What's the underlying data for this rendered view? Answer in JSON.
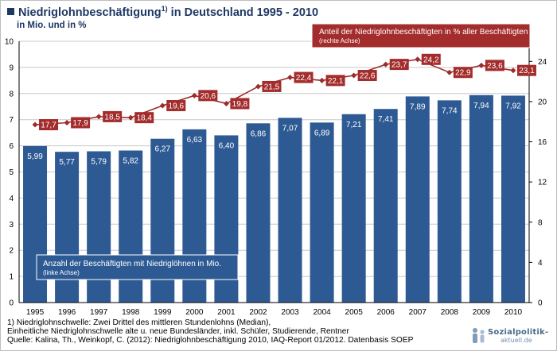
{
  "title": {
    "text": "Niedriglohnbeschäftigung",
    "sup": "1)",
    "rest": " in Deutschland 1995 - 2010"
  },
  "subtitle": "in Mio. und in %",
  "legend_right": {
    "line1": "Anteil der Niedriglohnbeschäftigten in % aller Beschäftigten",
    "line2": "(rechte Achse)"
  },
  "legend_left": {
    "line1": "Anzahl der Beschäftigten mit Niedriglöhnen in Mio.",
    "line2": "(linke Achse)"
  },
  "footnotes": [
    "1) Niedriglohnschwelle: Zwei Drittel des mittleren Stundenlohns (Median),",
    "Einheitliche Niedriglohnschwelle alte u. neue Bundesländer, inkl. Schüler, Studierende, Rentner",
    "Quelle: Kalina, Th., Weinkopf, C. (2012): Niedriglohnbeschäftigung 2010, IAQ-Report 01/2012. Datenbasis SOEP"
  ],
  "logo": {
    "line1": "Sozialpolitik-",
    "line2": "aktuell.de"
  },
  "colors": {
    "bar": "#2e5a94",
    "line": "#9c2b2b",
    "title": "#1f3864"
  },
  "chart_data": {
    "type": "bar",
    "categories": [
      "1995",
      "1996",
      "1997",
      "1998",
      "1999",
      "2000",
      "2001",
      "2002",
      "2003",
      "2004",
      "2005",
      "2006",
      "2007",
      "2008",
      "2009",
      "2010"
    ],
    "series": [
      {
        "type": "bar",
        "axis": "left",
        "values": [
          5.99,
          5.77,
          5.79,
          5.82,
          6.27,
          6.63,
          6.4,
          6.86,
          7.07,
          6.89,
          7.21,
          7.41,
          7.89,
          7.74,
          7.94,
          7.92
        ],
        "labels": [
          "5,99",
          "5,77",
          "5,79",
          "5,82",
          "6,27",
          "6,63",
          "6,40",
          "6,86",
          "7,07",
          "6,89",
          "7,21",
          "7,41",
          "7,89",
          "7,74",
          "7,94",
          "7,92"
        ]
      },
      {
        "type": "line",
        "axis": "right",
        "values": [
          17.7,
          17.9,
          18.5,
          18.4,
          19.6,
          20.6,
          19.8,
          21.5,
          22.4,
          22.1,
          22.6,
          23.7,
          24.2,
          22.9,
          23.6,
          23.1
        ],
        "labels": [
          "17,7",
          "17,9",
          "18,5",
          "18,4",
          "19,6",
          "20,6",
          "19,8",
          "21,5",
          "22,4",
          "22,1",
          "22,6",
          "23,7",
          "24,2",
          "22,9",
          "23,6",
          "23,1"
        ]
      }
    ],
    "left_axis": {
      "min": 0,
      "max": 10,
      "ticks": [
        0,
        1,
        2,
        3,
        4,
        5,
        6,
        7,
        8,
        9,
        10
      ]
    },
    "right_axis": {
      "min": 0,
      "max": 26,
      "ticks": [
        0,
        4,
        8,
        12,
        16,
        20,
        24
      ]
    },
    "grid": true
  }
}
